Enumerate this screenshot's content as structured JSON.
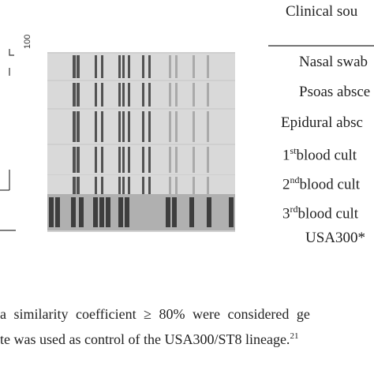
{
  "header": {
    "title": "Clinical sou"
  },
  "dendrogram": {
    "scale_label": "100"
  },
  "table": {
    "rows": [
      {
        "number": "",
        "sup": "",
        "text": "Nasal swab"
      },
      {
        "number": "",
        "sup": "",
        "text": "Psoas absce"
      },
      {
        "number": "",
        "sup": "",
        "text": "Epidural absc"
      },
      {
        "number": "1",
        "sup": "st",
        "text": "blood cult"
      },
      {
        "number": "2",
        "sup": "nd",
        "text": "blood cult"
      },
      {
        "number": "3",
        "sup": "rd",
        "text": "blood cult"
      },
      {
        "number": "",
        "sup": "",
        "text": "USA300*"
      }
    ]
  },
  "caption": {
    "line1": "a similarity coefficient ≥ 80% were considered ge",
    "line2": "te was used as control of the USA300/ST8 lineage.",
    "line2_sup": "21"
  }
}
